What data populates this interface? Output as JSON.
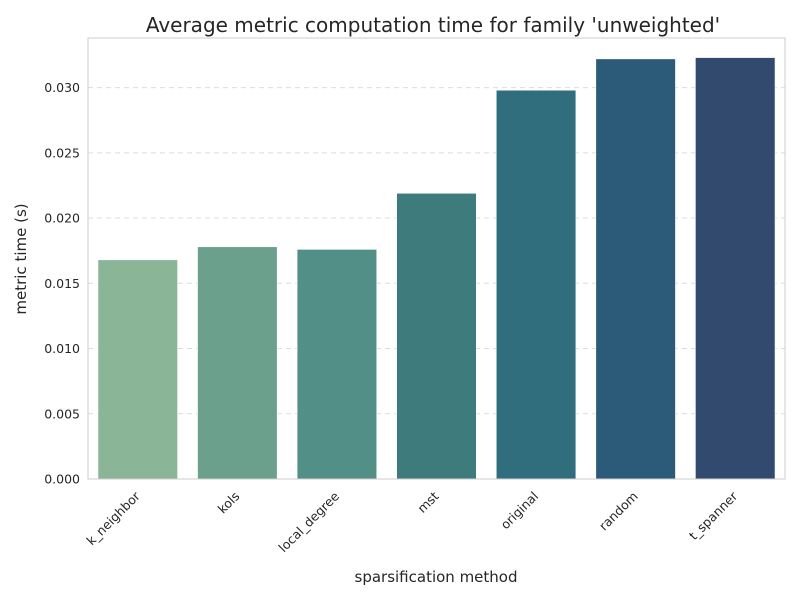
{
  "chart_data": {
    "type": "bar",
    "title": "Average metric computation time for family 'unweighted'",
    "xlabel": "sparsification method",
    "ylabel": "metric time (s)",
    "categories": [
      "k_neighbor",
      "kols",
      "local_degree",
      "mst",
      "original",
      "random",
      "t_spanner"
    ],
    "values": [
      0.0168,
      0.0178,
      0.0176,
      0.0219,
      0.0298,
      0.0322,
      0.0323
    ],
    "colors": [
      "#8ab596",
      "#6aa08c",
      "#528f86",
      "#3e7b7d",
      "#306e7d",
      "#2b5b79",
      "#314a6e"
    ],
    "ylim": [
      0,
      0.0338
    ],
    "yticks": [
      "0.000",
      "0.005",
      "0.010",
      "0.015",
      "0.020",
      "0.025",
      "0.030"
    ],
    "ytick_values": [
      0,
      0.005,
      0.01,
      0.015,
      0.02,
      0.025,
      0.03
    ],
    "grid": true,
    "legend": "none"
  }
}
